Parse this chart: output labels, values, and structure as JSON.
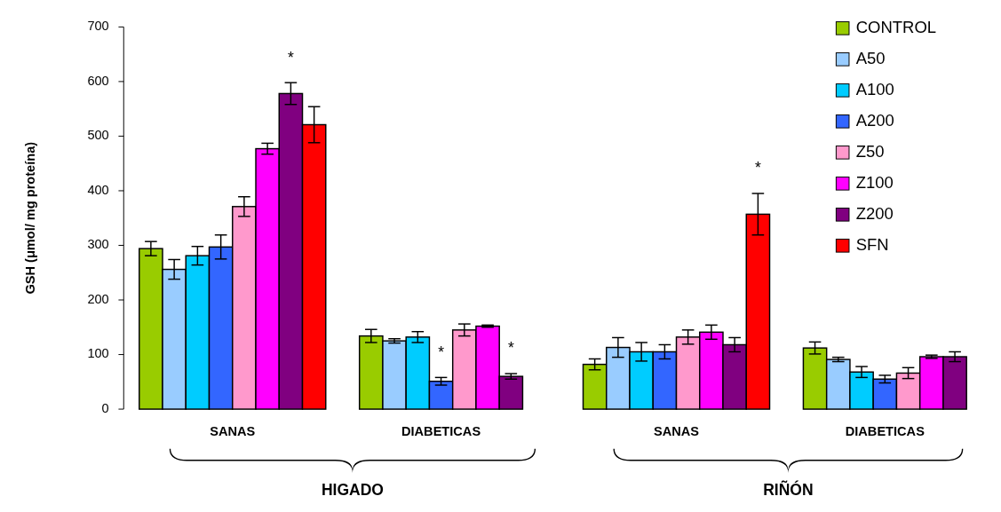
{
  "chart_data": [
    {
      "type": "bar",
      "xlabel": "HIGADO",
      "ylabel": "GSH (μmol/ mg proteína)",
      "categories": [
        "SANAS",
        "DIABETICAS"
      ],
      "ylim": [
        0,
        700
      ],
      "yticks": [
        0,
        100,
        200,
        300,
        400,
        500,
        600,
        700
      ],
      "legend": false,
      "series": [
        {
          "color": "#99cc00",
          "values": [
            294,
            134
          ],
          "errors": [
            13,
            12
          ]
        },
        {
          "color": "#99ccff",
          "values": [
            256,
            125
          ],
          "errors": [
            18,
            4
          ]
        },
        {
          "color": "#00ccff",
          "values": [
            281,
            132
          ],
          "errors": [
            17,
            10
          ]
        },
        {
          "color": "#3366ff",
          "values": [
            297,
            51
          ],
          "errors": [
            22,
            7
          ],
          "value_labels": [
            null,
            "*"
          ]
        },
        {
          "color": "#ff99cc",
          "values": [
            371,
            145
          ],
          "errors": [
            18,
            11
          ]
        },
        {
          "color": "#ff00ff",
          "values": [
            477,
            152
          ],
          "errors": [
            10,
            2
          ]
        },
        {
          "color": "#800080",
          "values": [
            578,
            60
          ],
          "errors": [
            20,
            5
          ],
          "value_labels": [
            "*",
            "*"
          ]
        },
        {
          "color": "#ff0000",
          "values": [
            521,
            null
          ],
          "errors": [
            33,
            null
          ]
        }
      ]
    },
    {
      "type": "bar",
      "xlabel": "RIÑÓN",
      "categories": [
        "SANAS",
        "DIABETICAS"
      ],
      "ylim": [
        0,
        700
      ],
      "tick_labels": false,
      "legend": "top right",
      "series": [
        {
          "name": "CONTROL",
          "color": "#99cc00",
          "values": [
            82,
            112
          ],
          "errors": [
            10,
            11
          ]
        },
        {
          "name": "A50",
          "color": "#99ccff",
          "values": [
            113,
            91
          ],
          "errors": [
            18,
            4
          ]
        },
        {
          "name": "A100",
          "color": "#00ccff",
          "values": [
            105,
            68
          ],
          "errors": [
            17,
            10
          ]
        },
        {
          "name": "A200",
          "color": "#3366ff",
          "values": [
            105,
            55
          ],
          "errors": [
            13,
            7
          ]
        },
        {
          "name": "Z50",
          "color": "#ff99cc",
          "values": [
            132,
            66
          ],
          "errors": [
            13,
            10
          ]
        },
        {
          "name": "Z100",
          "color": "#ff00ff",
          "values": [
            141,
            96
          ],
          "errors": [
            13,
            3
          ]
        },
        {
          "name": "Z200",
          "color": "#800080",
          "values": [
            118,
            96
          ],
          "errors": [
            13,
            9
          ]
        },
        {
          "name": "SFN",
          "color": "#ff0000",
          "values": [
            357,
            null
          ],
          "errors": [
            38,
            null
          ],
          "value_labels": [
            "*",
            null
          ]
        }
      ]
    }
  ]
}
